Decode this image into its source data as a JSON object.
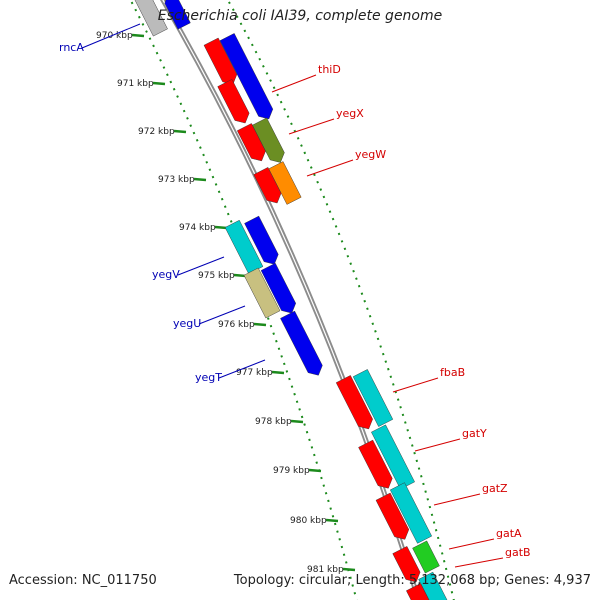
{
  "title": "Escherichia coli IAI39, complete genome",
  "footer": {
    "accession": "Accession: NC_011750",
    "summary": "Topology: circular; Length: 5,132,068 bp; Genes: 4,937"
  },
  "colors": {
    "backbone": "#8c8c8c",
    "ruler": "#1c8a1c",
    "forward_label": "#d40000",
    "reverse_label": "#0000b4",
    "cog_red": "#ff0000",
    "cog_blue": "#0000ee",
    "cog_cyan": "#00cccc",
    "cog_olive": "#6b8e23",
    "cog_orange": "#ff8c00",
    "cog_khaki": "#c8c080",
    "cog_green": "#22cc22",
    "cog_grey": "#bbbbbb"
  },
  "ruler_ticks": [
    "970 kbp",
    "971 kbp",
    "972 kbp",
    "973 kbp",
    "974 kbp",
    "975 kbp",
    "976 kbp",
    "977 kbp",
    "978 kbp",
    "979 kbp",
    "980 kbp",
    "981 kbp"
  ],
  "gene_labels_forward": [
    "thiD",
    "yegX",
    "yegW",
    "fbaB",
    "gatY",
    "gatZ",
    "gatA",
    "gatB"
  ],
  "gene_labels_reverse": [
    "rncA",
    "yegV",
    "yegU",
    "yegT"
  ]
}
